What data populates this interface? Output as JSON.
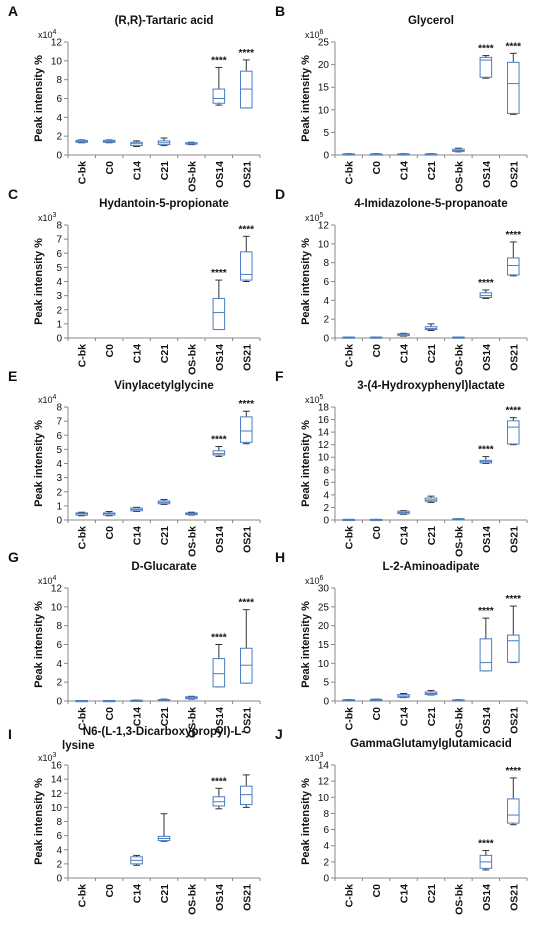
{
  "figure": {
    "ylabel": "Peak intensity %",
    "categories": [
      "C-bk",
      "C0",
      "C14",
      "C21",
      "OS-bk",
      "OS14",
      "OS21"
    ],
    "significance_label": "****"
  },
  "chart_data": [
    {
      "type": "box",
      "panel_letter": "A",
      "title": "(R,R)-Tartaric acid",
      "multiplier": "x10",
      "multiplier_exp": "4",
      "ylim": [
        0,
        12
      ],
      "yticks": [
        0,
        2,
        4,
        6,
        8,
        10,
        12
      ],
      "ylabel": "Peak intensity %",
      "categories": [
        "C-bk",
        "C0",
        "C14",
        "C21",
        "OS-bk",
        "OS14",
        "OS21"
      ],
      "boxes": [
        {
          "min": 1.3,
          "q1": 1.35,
          "median": 1.45,
          "q3": 1.55,
          "max": 1.6
        },
        {
          "min": 1.3,
          "q1": 1.35,
          "median": 1.45,
          "q3": 1.55,
          "max": 1.6
        },
        {
          "min": 0.9,
          "q1": 1.0,
          "median": 1.2,
          "q3": 1.35,
          "max": 1.5
        },
        {
          "min": 1.0,
          "q1": 1.1,
          "median": 1.3,
          "q3": 1.5,
          "max": 1.8
        },
        {
          "min": 1.1,
          "q1": 1.15,
          "median": 1.25,
          "q3": 1.3,
          "max": 1.35
        },
        {
          "min": 5.3,
          "q1": 5.5,
          "median": 6.0,
          "q3": 7.0,
          "max": 9.3
        },
        {
          "min": 5.0,
          "q1": 5.0,
          "median": 7.0,
          "q3": 8.9,
          "max": 10.1
        }
      ],
      "significant": [
        false,
        false,
        false,
        false,
        false,
        true,
        true
      ]
    },
    {
      "type": "box",
      "panel_letter": "B",
      "title": "Glycerol",
      "multiplier": "x10",
      "multiplier_exp": "6",
      "ylim": [
        0,
        25
      ],
      "yticks": [
        0,
        5,
        10,
        15,
        20,
        25
      ],
      "ylabel": "Peak intensity %",
      "categories": [
        "C-bk",
        "C0",
        "C14",
        "C21",
        "OS-bk",
        "OS14",
        "OS21"
      ],
      "boxes": [
        {
          "min": 0.1,
          "q1": 0.15,
          "median": 0.2,
          "q3": 0.25,
          "max": 0.3
        },
        {
          "min": 0.1,
          "q1": 0.15,
          "median": 0.2,
          "q3": 0.25,
          "max": 0.3
        },
        {
          "min": 0.1,
          "q1": 0.15,
          "median": 0.2,
          "q3": 0.25,
          "max": 0.3
        },
        {
          "min": 0.1,
          "q1": 0.15,
          "median": 0.2,
          "q3": 0.25,
          "max": 0.3
        },
        {
          "min": 0.7,
          "q1": 0.8,
          "median": 1.0,
          "q3": 1.3,
          "max": 1.5
        },
        {
          "min": 17.0,
          "q1": 17.2,
          "median": 21.0,
          "q3": 21.6,
          "max": 22.0
        },
        {
          "min": 9.0,
          "q1": 9.2,
          "median": 15.8,
          "q3": 20.5,
          "max": 22.5
        }
      ],
      "significant": [
        false,
        false,
        false,
        false,
        false,
        true,
        true
      ]
    },
    {
      "type": "box",
      "panel_letter": "C",
      "title": "Hydantoin-5-propionate",
      "multiplier": "x10",
      "multiplier_exp": "3",
      "ylim": [
        0,
        8
      ],
      "yticks": [
        0,
        1,
        2,
        3,
        4,
        5,
        6,
        7,
        8
      ],
      "ylabel": "Peak intensity %",
      "categories": [
        "C-bk",
        "C0",
        "C14",
        "C21",
        "OS-bk",
        "OS14",
        "OS21"
      ],
      "boxes": [
        null,
        null,
        null,
        null,
        null,
        {
          "min": 0.6,
          "q1": 0.6,
          "median": 1.8,
          "q3": 2.8,
          "max": 4.1
        },
        {
          "min": 4.0,
          "q1": 4.1,
          "median": 4.5,
          "q3": 6.1,
          "max": 7.2
        }
      ],
      "significant": [
        false,
        false,
        false,
        false,
        false,
        true,
        true
      ]
    },
    {
      "type": "box",
      "panel_letter": "D",
      "title": "4-Imidazolone-5-propanoate",
      "multiplier": "x10",
      "multiplier_exp": "5",
      "ylim": [
        0,
        12
      ],
      "yticks": [
        0,
        2,
        4,
        6,
        8,
        10,
        12
      ],
      "ylabel": "Peak intensity %",
      "categories": [
        "C-bk",
        "C0",
        "C14",
        "C21",
        "OS-bk",
        "OS14",
        "OS21"
      ],
      "boxes": [
        {
          "min": 0.0,
          "q1": 0.0,
          "median": 0.05,
          "q3": 0.1,
          "max": 0.1
        },
        {
          "min": 0.0,
          "q1": 0.0,
          "median": 0.05,
          "q3": 0.1,
          "max": 0.1
        },
        {
          "min": 0.2,
          "q1": 0.25,
          "median": 0.35,
          "q3": 0.45,
          "max": 0.5
        },
        {
          "min": 0.8,
          "q1": 0.9,
          "median": 1.0,
          "q3": 1.2,
          "max": 1.5
        },
        {
          "min": 0.0,
          "q1": 0.0,
          "median": 0.05,
          "q3": 0.1,
          "max": 0.1
        },
        {
          "min": 4.2,
          "q1": 4.3,
          "median": 4.5,
          "q3": 4.8,
          "max": 5.1
        },
        {
          "min": 6.6,
          "q1": 6.7,
          "median": 7.7,
          "q3": 8.5,
          "max": 10.2
        }
      ],
      "significant": [
        false,
        false,
        false,
        false,
        false,
        true,
        true
      ]
    },
    {
      "type": "box",
      "panel_letter": "E",
      "title": "Vinylacetylglycine",
      "multiplier": "x10",
      "multiplier_exp": "4",
      "ylim": [
        0,
        8
      ],
      "yticks": [
        0,
        1,
        2,
        3,
        4,
        5,
        6,
        7,
        8
      ],
      "ylabel": "Peak intensity %",
      "categories": [
        "C-bk",
        "C0",
        "C14",
        "C21",
        "OS-bk",
        "OS14",
        "OS21"
      ],
      "boxes": [
        {
          "min": 0.3,
          "q1": 0.35,
          "median": 0.45,
          "q3": 0.5,
          "max": 0.55
        },
        {
          "min": 0.3,
          "q1": 0.35,
          "median": 0.45,
          "q3": 0.5,
          "max": 0.6
        },
        {
          "min": 0.6,
          "q1": 0.65,
          "median": 0.75,
          "q3": 0.85,
          "max": 0.9
        },
        {
          "min": 1.1,
          "q1": 1.15,
          "median": 1.25,
          "q3": 1.35,
          "max": 1.45
        },
        {
          "min": 0.35,
          "q1": 0.38,
          "median": 0.45,
          "q3": 0.5,
          "max": 0.55
        },
        {
          "min": 4.5,
          "q1": 4.6,
          "median": 4.7,
          "q3": 4.9,
          "max": 5.2
        },
        {
          "min": 5.4,
          "q1": 5.5,
          "median": 6.3,
          "q3": 7.3,
          "max": 7.7
        }
      ],
      "significant": [
        false,
        false,
        false,
        false,
        false,
        true,
        true
      ]
    },
    {
      "type": "box",
      "panel_letter": "F",
      "title": "3-(4-Hydroxyphenyl)lactate",
      "multiplier": "x10",
      "multiplier_exp": "5",
      "ylim": [
        0,
        18
      ],
      "yticks": [
        0,
        2,
        4,
        6,
        8,
        10,
        12,
        14,
        16,
        18
      ],
      "ylabel": "Peak intensity %",
      "categories": [
        "C-bk",
        "C0",
        "C14",
        "C21",
        "OS-bk",
        "OS14",
        "OS21"
      ],
      "boxes": [
        {
          "min": 0.0,
          "q1": 0.0,
          "median": 0.05,
          "q3": 0.1,
          "max": 0.1
        },
        {
          "min": 0.0,
          "q1": 0.0,
          "median": 0.05,
          "q3": 0.1,
          "max": 0.1
        },
        {
          "min": 0.9,
          "q1": 1.0,
          "median": 1.2,
          "q3": 1.4,
          "max": 1.5
        },
        {
          "min": 2.8,
          "q1": 3.0,
          "median": 3.2,
          "q3": 3.5,
          "max": 3.8
        },
        {
          "min": 0.0,
          "q1": 0.0,
          "median": 0.1,
          "q3": 0.2,
          "max": 0.2
        },
        {
          "min": 9.0,
          "q1": 9.1,
          "median": 9.3,
          "q3": 9.5,
          "max": 10.1
        },
        {
          "min": 12.0,
          "q1": 12.1,
          "median": 14.8,
          "q3": 15.8,
          "max": 16.3
        }
      ],
      "significant": [
        false,
        false,
        false,
        false,
        false,
        true,
        true
      ]
    },
    {
      "type": "box",
      "panel_letter": "G",
      "title": "D-Glucarate",
      "multiplier": "x10",
      "multiplier_exp": "4",
      "ylim": [
        0,
        12
      ],
      "yticks": [
        0,
        2,
        4,
        6,
        8,
        10,
        12
      ],
      "ylabel": "Peak intensity %",
      "categories": [
        "C-bk",
        "C0",
        "C14",
        "C21",
        "OS-bk",
        "OS14",
        "OS21"
      ],
      "boxes": [
        {
          "min": 0.0,
          "q1": 0.0,
          "median": 0.02,
          "q3": 0.05,
          "max": 0.05
        },
        {
          "min": 0.0,
          "q1": 0.0,
          "median": 0.02,
          "q3": 0.05,
          "max": 0.05
        },
        {
          "min": 0.0,
          "q1": 0.0,
          "median": 0.05,
          "q3": 0.08,
          "max": 0.1
        },
        {
          "min": 0.05,
          "q1": 0.06,
          "median": 0.1,
          "q3": 0.15,
          "max": 0.2
        },
        {
          "min": 0.2,
          "q1": 0.25,
          "median": 0.35,
          "q3": 0.45,
          "max": 0.5
        },
        {
          "min": 1.5,
          "q1": 1.5,
          "median": 2.9,
          "q3": 4.5,
          "max": 6.0
        },
        {
          "min": 1.9,
          "q1": 1.9,
          "median": 3.8,
          "q3": 5.6,
          "max": 9.7
        }
      ],
      "significant": [
        false,
        false,
        false,
        false,
        false,
        true,
        true
      ]
    },
    {
      "type": "box",
      "panel_letter": "H",
      "title": "L-2-Aminoadipate",
      "multiplier": "x10",
      "multiplier_exp": "6",
      "ylim": [
        0,
        30
      ],
      "yticks": [
        0,
        5,
        10,
        15,
        20,
        25,
        30
      ],
      "ylabel": "Peak intensity %",
      "categories": [
        "C-bk",
        "C0",
        "C14",
        "C21",
        "OS-bk",
        "OS14",
        "OS21"
      ],
      "boxes": [
        {
          "min": 0.1,
          "q1": 0.15,
          "median": 0.25,
          "q3": 0.35,
          "max": 0.4
        },
        {
          "min": 0.2,
          "q1": 0.25,
          "median": 0.35,
          "q3": 0.45,
          "max": 0.5
        },
        {
          "min": 0.9,
          "q1": 1.0,
          "median": 1.3,
          "q3": 1.7,
          "max": 2.0
        },
        {
          "min": 1.6,
          "q1": 1.7,
          "median": 2.0,
          "q3": 2.4,
          "max": 2.8
        },
        {
          "min": 0.1,
          "q1": 0.15,
          "median": 0.25,
          "q3": 0.3,
          "max": 0.35
        },
        {
          "min": 8.0,
          "q1": 8.0,
          "median": 10.2,
          "q3": 16.5,
          "max": 22.0
        },
        {
          "min": 10.2,
          "q1": 10.3,
          "median": 16.0,
          "q3": 17.5,
          "max": 25.2
        }
      ],
      "significant": [
        false,
        false,
        false,
        false,
        false,
        true,
        true
      ]
    },
    {
      "type": "box",
      "panel_letter": "I",
      "title": "N6-(L-1,3-Dicarboxypropyl)-L-",
      "title_line2": "lysine",
      "multiplier": "x10",
      "multiplier_exp": "3",
      "ylim": [
        0,
        16
      ],
      "yticks": [
        0,
        2,
        4,
        6,
        8,
        10,
        12,
        14,
        16
      ],
      "ylabel": "Peak intensity %",
      "categories": [
        "C-bk",
        "C0",
        "C14",
        "C21",
        "OS-bk",
        "OS14",
        "OS21"
      ],
      "boxes": [
        null,
        null,
        {
          "min": 1.8,
          "q1": 2.0,
          "median": 2.5,
          "q3": 3.0,
          "max": 3.2
        },
        {
          "min": 5.2,
          "q1": 5.3,
          "median": 5.6,
          "q3": 5.9,
          "max": 9.1
        },
        null,
        {
          "min": 9.8,
          "q1": 10.2,
          "median": 10.8,
          "q3": 11.5,
          "max": 12.7
        },
        {
          "min": 10.0,
          "q1": 10.4,
          "median": 11.8,
          "q3": 13.0,
          "max": 14.6
        }
      ],
      "significant": [
        false,
        false,
        false,
        false,
        false,
        true,
        false
      ]
    },
    {
      "type": "box",
      "panel_letter": "J",
      "title": "GammaGlutamylglutamicacid",
      "multiplier": "x10",
      "multiplier_exp": "3",
      "ylim": [
        0,
        14
      ],
      "yticks": [
        0,
        2,
        4,
        6,
        8,
        10,
        12,
        14
      ],
      "ylabel": "Peak intensity %",
      "categories": [
        "C-bk",
        "C0",
        "C14",
        "C21",
        "OS-bk",
        "OS14",
        "OS21"
      ],
      "boxes": [
        null,
        null,
        null,
        null,
        null,
        {
          "min": 1.0,
          "q1": 1.2,
          "median": 2.0,
          "q3": 2.8,
          "max": 3.4
        },
        {
          "min": 6.6,
          "q1": 6.8,
          "median": 7.8,
          "q3": 9.8,
          "max": 12.4
        }
      ],
      "significant": [
        false,
        false,
        false,
        false,
        false,
        true,
        true
      ]
    }
  ],
  "colors": {
    "box_stroke": "#4a7dc2",
    "whisker": "#333333",
    "axis": "#888888",
    "text": "#111111"
  }
}
